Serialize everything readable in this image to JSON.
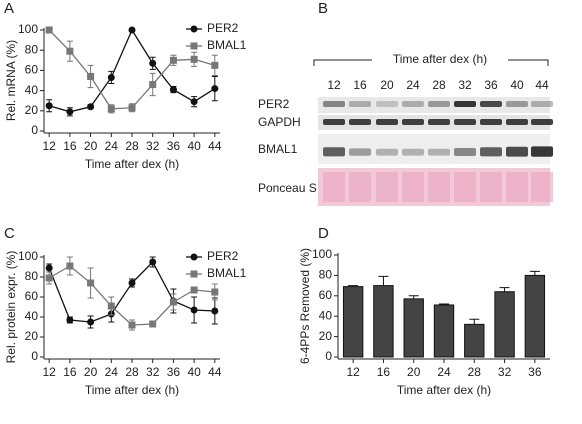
{
  "chart_data": [
    {
      "type": "line",
      "label": "A",
      "ylabel": "Rel. mRNA (%)",
      "xlabel": "Time after dex (h)",
      "x": [
        12,
        16,
        20,
        24,
        28,
        32,
        36,
        40,
        44
      ],
      "xlim": [
        11,
        45
      ],
      "xticks": [
        12,
        16,
        20,
        24,
        28,
        32,
        36,
        40,
        44
      ],
      "ylim": [
        0,
        100
      ],
      "yticks": [
        0,
        20,
        40,
        60,
        80,
        100
      ],
      "legend": "top right",
      "series": [
        {
          "name": "PER2",
          "color": "#111111",
          "marker": "circle",
          "values": [
            25,
            19,
            24,
            53,
            100,
            67,
            41,
            29,
            42
          ],
          "errors": [
            6,
            4,
            2,
            6,
            0,
            6,
            3,
            5,
            12
          ]
        },
        {
          "name": "BMAL1",
          "color": "#777777",
          "marker": "square",
          "values": [
            100,
            79,
            54,
            22,
            23,
            46,
            70,
            71,
            65
          ],
          "errors": [
            0,
            10,
            11,
            4,
            4,
            11,
            5,
            7,
            10
          ]
        }
      ]
    },
    {
      "type": "line",
      "label": "C",
      "ylabel": "Rel. protein expr. (%)",
      "xlabel": "Time after dex (h)",
      "x": [
        12,
        16,
        20,
        24,
        28,
        32,
        36,
        40,
        44
      ],
      "xlim": [
        11,
        45
      ],
      "xticks": [
        12,
        16,
        20,
        24,
        28,
        32,
        36,
        40,
        44
      ],
      "ylim": [
        0,
        100
      ],
      "yticks": [
        0,
        20,
        40,
        60,
        80,
        100
      ],
      "legend": "top right",
      "series": [
        {
          "name": "PER2",
          "color": "#111111",
          "marker": "circle",
          "values": [
            89,
            37,
            35,
            43,
            74,
            95,
            56,
            47,
            46
          ],
          "errors": [
            4,
            3,
            6,
            8,
            4,
            5,
            12,
            13,
            13
          ]
        },
        {
          "name": "BMAL1",
          "color": "#777777",
          "marker": "square",
          "values": [
            79,
            91,
            74,
            51,
            32,
            33,
            55,
            67,
            65
          ],
          "errors": [
            6,
            9,
            15,
            9,
            5,
            2,
            8,
            2,
            8
          ]
        }
      ]
    },
    {
      "type": "bar",
      "label": "D",
      "ylabel": "6-4PPs Removed (%)",
      "xlabel": "Time after dex (h)",
      "categories": [
        "12",
        "16",
        "20",
        "24",
        "28",
        "32",
        "36"
      ],
      "values": [
        69,
        70,
        57,
        51,
        32,
        64,
        80
      ],
      "errors": [
        1,
        9,
        3,
        1,
        5,
        4,
        4
      ],
      "color": "#444444",
      "ylim": [
        0,
        100
      ],
      "yticks": [
        0,
        20,
        40,
        60,
        80,
        100
      ]
    }
  ],
  "blot": {
    "label": "B",
    "title": "Time after dex (h)",
    "lanes": [
      "12",
      "16",
      "20",
      "24",
      "28",
      "32",
      "36",
      "40",
      "44"
    ],
    "rows": [
      "PER2",
      "GAPDH",
      "BMAL1",
      "Ponceau S"
    ]
  }
}
